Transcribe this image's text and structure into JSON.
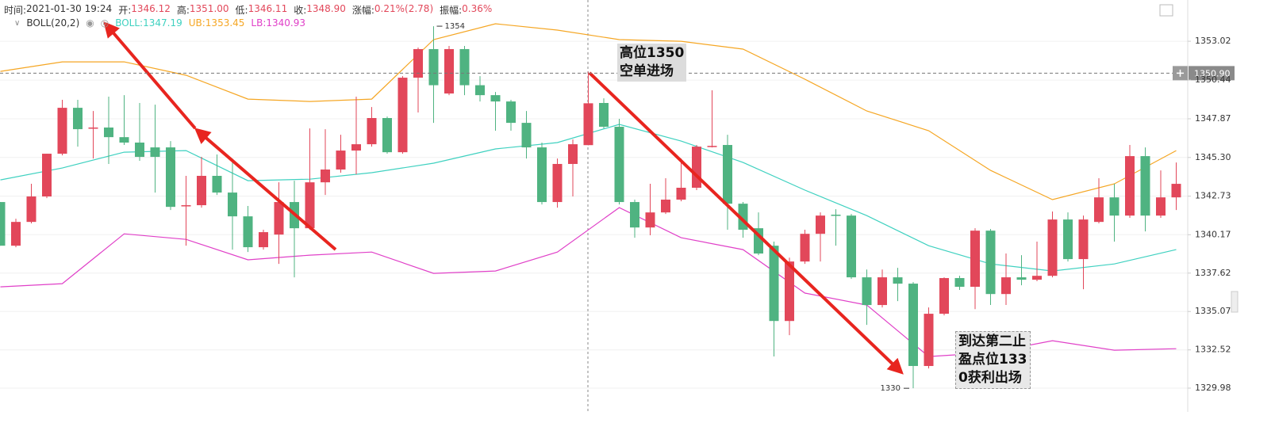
{
  "header": [
    {
      "label": "时间:",
      "text": "2021-01-30 19:24"
    },
    {
      "label": "开:",
      "text": "1346.12"
    },
    {
      "label": "高:",
      "text": "1351.00"
    },
    {
      "label": "低:",
      "text": "1346.11"
    },
    {
      "label": "收:",
      "text": "1348.90"
    },
    {
      "label": "涨幅:",
      "text": "0.21%(2.78)"
    },
    {
      "label": "振幅:",
      "text": "0.36%"
    }
  ],
  "chart_data": {
    "type": "candlestick",
    "indicator": "BOLL(20,2)",
    "up_color": "#e2475a",
    "down_color": "#4fb381",
    "open": [
      1342.34,
      1339.44,
      1341.02,
      1342.71,
      1345.55,
      1348.6,
      1347.29,
      1347.29,
      1346.65,
      1346.29,
      1345.97,
      1345.97,
      1342.13,
      1342.13,
      1344.08,
      1342.97,
      1341.39,
      1339.34,
      1340.18,
      1342.34,
      1340.6,
      1343.65,
      1344.5,
      1345.76,
      1346.18,
      1347.92,
      1345.65,
      1350.6,
      1352.5,
      1349.55,
      1352.5,
      1350.1,
      1349.44,
      1349.02,
      1347.6,
      1345.97,
      1342.34,
      1344.87,
      1346.12,
      1348.92,
      1347.34,
      1342.34,
      1340.65,
      1341.65,
      1342.5,
      1343.29,
      1346.02,
      1346.13,
      1342.23,
      1340.6,
      1339.44,
      1334.44,
      1338.39,
      1340.23,
      1341.5,
      1341.44,
      1337.34,
      1335.5,
      1337.34,
      1336.92,
      1331.45,
      1334.92,
      1337.29,
      1336.71,
      1340.44,
      1336.23,
      1337.34,
      1337.18,
      1337.44,
      1341.18,
      1338.55,
      1341.02,
      1342.65,
      1341.44,
      1345.39,
      1341.44,
      1342.65
    ],
    "high": [
      1342.34,
      1341.23,
      1343.55,
      1345.55,
      1349.13,
      1349.13,
      1348.39,
      1349.34,
      1349.44,
      1348.92,
      1348.81,
      1346.39,
      1344.08,
      1345.34,
      1345.5,
      1345.23,
      1342.08,
      1340.5,
      1343.65,
      1343.76,
      1347.23,
      1347.18,
      1346.81,
      1349.34,
      1348.65,
      1348.02,
      1350.7,
      1352.6,
      1354.02,
      1352.71,
      1352.71,
      1350.7,
      1349.65,
      1349.13,
      1348.39,
      1346.29,
      1345.23,
      1346.5,
      1351.0,
      1349.23,
      1347.87,
      1342.5,
      1343.55,
      1343.92,
      1345.23,
      1346.13,
      1349.76,
      1346.81,
      1342.34,
      1341.65,
      1339.71,
      1338.65,
      1340.5,
      1341.65,
      1341.86,
      1341.55,
      1337.86,
      1337.86,
      1337.97,
      1337.02,
      1335.34,
      1337.34,
      1337.44,
      1340.6,
      1340.55,
      1338.92,
      1338.81,
      1339.71,
      1341.71,
      1341.65,
      1341.44,
      1343.92,
      1343.55,
      1346.13,
      1345.97,
      1344.44,
      1344.97
    ],
    "low": [
      1339.44,
      1339.34,
      1340.92,
      1342.6,
      1345.44,
      1346.02,
      1345.23,
      1344.87,
      1346.13,
      1345.08,
      1342.97,
      1341.81,
      1339.44,
      1341.97,
      1342.81,
      1339.18,
      1339.02,
      1339.18,
      1338.23,
      1337.34,
      1340.5,
      1342.81,
      1344.29,
      1344.18,
      1346.02,
      1345.55,
      1345.55,
      1348.29,
      1347.6,
      1349.44,
      1349.44,
      1349.02,
      1347.08,
      1347.08,
      1345.23,
      1342.18,
      1341.97,
      1342.71,
      1346.11,
      1347.23,
      1342.18,
      1339.97,
      1340.13,
      1341.55,
      1342.39,
      1343.13,
      1345.97,
      1340.5,
      1339.97,
      1338.81,
      1332.08,
      1333.5,
      1338.23,
      1338.39,
      1339.44,
      1337.23,
      1334.18,
      1335.34,
      1335.76,
      1329.97,
      1331.29,
      1334.81,
      1336.5,
      1335.23,
      1335.5,
      1335.5,
      1336.81,
      1337.08,
      1337.34,
      1338.39,
      1336.55,
      1340.92,
      1339.71,
      1341.29,
      1340.39,
      1341.29,
      1341.81
    ],
    "close": [
      1339.44,
      1341.02,
      1342.71,
      1345.55,
      1348.6,
      1347.18,
      1347.29,
      1346.65,
      1346.29,
      1345.34,
      1345.34,
      1342.02,
      1342.13,
      1344.08,
      1342.97,
      1341.39,
      1339.34,
      1340.34,
      1342.34,
      1340.6,
      1343.65,
      1344.5,
      1345.76,
      1346.18,
      1347.92,
      1345.65,
      1350.6,
      1352.5,
      1350.1,
      1352.5,
      1350.1,
      1349.44,
      1349.02,
      1347.6,
      1345.97,
      1342.34,
      1344.87,
      1346.18,
      1348.9,
      1347.34,
      1342.34,
      1340.65,
      1341.65,
      1342.5,
      1343.29,
      1346.02,
      1346.07,
      1342.23,
      1340.5,
      1338.92,
      1334.44,
      1338.39,
      1340.23,
      1341.44,
      1341.44,
      1337.34,
      1335.5,
      1337.34,
      1336.92,
      1331.45,
      1334.92,
      1337.29,
      1336.71,
      1340.44,
      1336.23,
      1337.34,
      1337.18,
      1337.44,
      1341.18,
      1338.55,
      1341.18,
      1342.65,
      1341.44,
      1345.39,
      1341.44,
      1342.65,
      1343.55
    ],
    "series": [
      {
        "name": "BOLL:1347.19",
        "color": "#3fd1c0",
        "x": [
          0,
          4,
          8,
          12,
          16,
          20,
          24,
          28,
          32,
          36,
          40,
          44,
          48,
          52,
          56,
          60,
          64,
          68,
          72,
          76
        ],
        "values": [
          1343.81,
          1344.6,
          1345.65,
          1345.76,
          1343.76,
          1343.86,
          1344.29,
          1344.92,
          1345.87,
          1346.29,
          1347.5,
          1346.39,
          1344.97,
          1343.13,
          1341.44,
          1339.44,
          1338.23,
          1337.76,
          1338.23,
          1339.18
        ]
      },
      {
        "name": "UB:1353.45",
        "color": "#f5a623",
        "x": [
          0,
          4,
          8,
          12,
          16,
          20,
          24,
          28,
          32,
          36,
          40,
          44,
          48,
          52,
          56,
          60,
          64,
          68,
          72,
          76
        ],
        "values": [
          1351.02,
          1351.65,
          1351.65,
          1350.76,
          1349.18,
          1349.02,
          1349.18,
          1353.13,
          1354.18,
          1353.76,
          1353.13,
          1353.02,
          1352.5,
          1350.5,
          1348.39,
          1347.08,
          1344.44,
          1342.5,
          1343.55,
          1345.76
        ]
      },
      {
        "name": "LB:1340.93",
        "color": "#e040c8",
        "x": [
          0,
          4,
          8,
          12,
          16,
          20,
          24,
          28,
          32,
          36,
          40,
          44,
          48,
          52,
          56,
          60,
          64,
          68,
          72,
          76
        ],
        "values": [
          1336.71,
          1336.92,
          1340.23,
          1339.86,
          1338.5,
          1338.81,
          1339.02,
          1337.6,
          1337.76,
          1339.02,
          1341.97,
          1339.97,
          1339.18,
          1336.29,
          1335.5,
          1332.08,
          1332.34,
          1333.13,
          1332.5,
          1332.6
        ]
      }
    ],
    "ylim": [
      1328.4,
      1355.76
    ],
    "yticks": [
      1353.02,
      1350.44,
      1347.87,
      {
        "value": 1345.3,
        "label": "1345.30"
      },
      1342.73,
      1340.17,
      1337.62,
      1335.07,
      1332.52,
      1329.98
    ],
    "grid": true,
    "current_price": {
      "value": 1350.9,
      "label": "1350.90"
    },
    "max_marker": 1354,
    "min_marker": 1330,
    "annotations": [
      {
        "lines": [
          "高位1350",
          "空单进场"
        ]
      },
      {
        "lines": [
          "到达第二止",
          "盈点位133",
          "0获利出场"
        ]
      }
    ]
  }
}
